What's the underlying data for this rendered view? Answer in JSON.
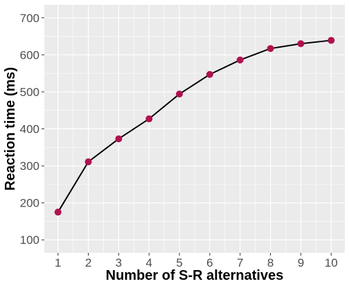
{
  "colors": {
    "panel_background": "#ebebeb",
    "grid_major": "#ffffff",
    "line": "#000000",
    "point": "#b0124f",
    "tick_text": "#4d4d4d"
  },
  "chart_data": {
    "type": "line",
    "title": "",
    "xlabel": "Number of S-R alternatives",
    "ylabel": "Reaction time (ms)",
    "x": [
      1,
      2,
      3,
      4,
      5,
      6,
      7,
      8,
      9,
      10
    ],
    "series": [
      {
        "values": [
          175,
          311,
          373,
          427,
          494,
          547,
          586,
          617,
          630,
          639
        ]
      }
    ],
    "xlim": [
      0.55,
      10.45
    ],
    "ylim": [
      65,
      735
    ],
    "x_ticks": [
      1,
      2,
      3,
      4,
      5,
      6,
      7,
      8,
      9,
      10
    ],
    "y_ticks": [
      100,
      200,
      300,
      400,
      500,
      600,
      700
    ],
    "grid": true,
    "legend": "none",
    "theme": "gray panel with white gridlines"
  }
}
